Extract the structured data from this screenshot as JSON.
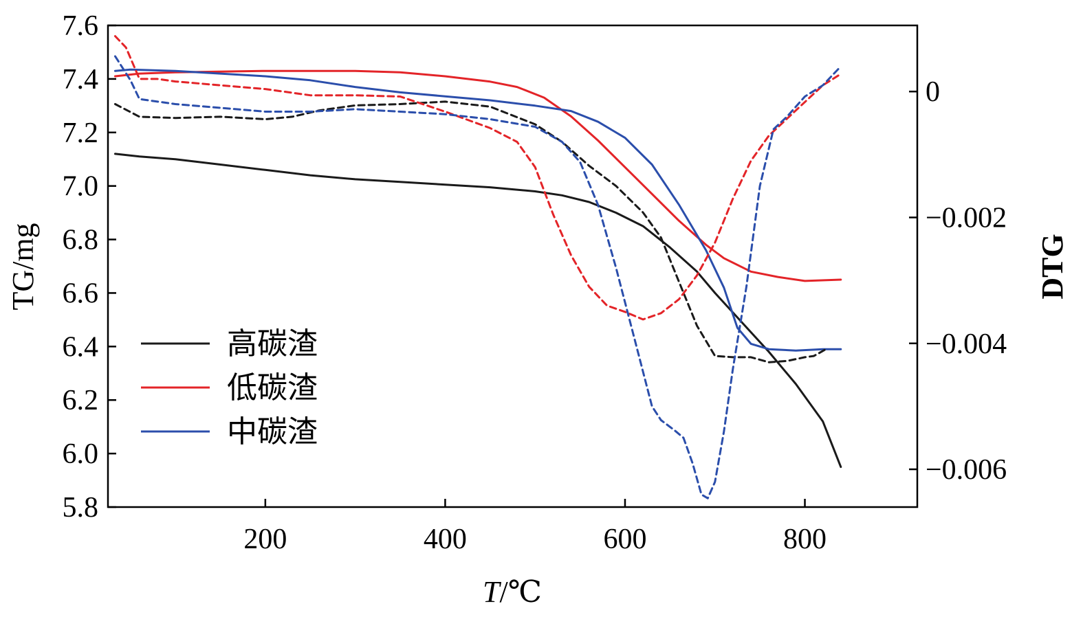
{
  "chart_data": {
    "type": "line",
    "xlabel_italic": "T",
    "xlabel_rest": "/℃",
    "ylabel": "TG/mg",
    "y2label": "DTG",
    "xlim": [
      25,
      925
    ],
    "ylim": [
      5.8,
      7.6
    ],
    "y2lim": [
      -0.0066,
      0.00105
    ],
    "xticks": [
      200,
      400,
      600,
      800
    ],
    "yticks": [
      5.8,
      6.0,
      6.2,
      6.4,
      6.6,
      6.8,
      7.0,
      7.2,
      7.4,
      7.6
    ],
    "yticklabels": [
      "5.8",
      "6.0",
      "6.2",
      "6.4",
      "6.6",
      "6.8",
      "7.0",
      "7.2",
      "7.4",
      "7.6"
    ],
    "y2ticks": [
      0,
      -0.002,
      -0.004,
      -0.006
    ],
    "y2ticklabels": [
      "0",
      "−0.002",
      "−0.004",
      "−0.006"
    ],
    "xticklabels": [
      "200",
      "400",
      "600",
      "800"
    ],
    "grid": false,
    "legend_position": "lower-left",
    "series": [
      {
        "name": "高碳渣",
        "color": "#1a1a1a",
        "axis": "TG",
        "style": "solid",
        "points": [
          [
            33,
            7.12
          ],
          [
            60,
            7.11
          ],
          [
            100,
            7.1
          ],
          [
            150,
            7.08
          ],
          [
            200,
            7.06
          ],
          [
            250,
            7.04
          ],
          [
            300,
            7.025
          ],
          [
            350,
            7.015
          ],
          [
            400,
            7.005
          ],
          [
            450,
            6.995
          ],
          [
            500,
            6.98
          ],
          [
            530,
            6.965
          ],
          [
            560,
            6.94
          ],
          [
            590,
            6.9
          ],
          [
            620,
            6.85
          ],
          [
            650,
            6.77
          ],
          [
            680,
            6.68
          ],
          [
            700,
            6.6
          ],
          [
            730,
            6.49
          ],
          [
            760,
            6.38
          ],
          [
            790,
            6.26
          ],
          [
            820,
            6.12
          ],
          [
            840,
            5.95
          ]
        ]
      },
      {
        "name": "低碳渣",
        "color": "#e32428",
        "axis": "TG",
        "style": "solid",
        "points": [
          [
            33,
            7.41
          ],
          [
            60,
            7.42
          ],
          [
            100,
            7.425
          ],
          [
            200,
            7.43
          ],
          [
            300,
            7.43
          ],
          [
            350,
            7.425
          ],
          [
            400,
            7.41
          ],
          [
            450,
            7.39
          ],
          [
            480,
            7.37
          ],
          [
            510,
            7.33
          ],
          [
            540,
            7.26
          ],
          [
            570,
            7.17
          ],
          [
            600,
            7.07
          ],
          [
            630,
            6.97
          ],
          [
            660,
            6.87
          ],
          [
            690,
            6.78
          ],
          [
            710,
            6.73
          ],
          [
            740,
            6.68
          ],
          [
            770,
            6.66
          ],
          [
            800,
            6.645
          ],
          [
            840,
            6.65
          ]
        ]
      },
      {
        "name": "中碳渣",
        "color": "#2b4eab",
        "axis": "TG",
        "style": "solid",
        "points": [
          [
            33,
            7.43
          ],
          [
            50,
            7.435
          ],
          [
            100,
            7.43
          ],
          [
            150,
            7.42
          ],
          [
            200,
            7.41
          ],
          [
            250,
            7.395
          ],
          [
            300,
            7.37
          ],
          [
            350,
            7.35
          ],
          [
            400,
            7.335
          ],
          [
            450,
            7.32
          ],
          [
            500,
            7.3
          ],
          [
            540,
            7.28
          ],
          [
            570,
            7.24
          ],
          [
            600,
            7.18
          ],
          [
            630,
            7.08
          ],
          [
            660,
            6.93
          ],
          [
            690,
            6.76
          ],
          [
            710,
            6.62
          ],
          [
            725,
            6.47
          ],
          [
            740,
            6.41
          ],
          [
            760,
            6.39
          ],
          [
            790,
            6.385
          ],
          [
            820,
            6.39
          ],
          [
            840,
            6.39
          ]
        ]
      },
      {
        "name": "",
        "color": "#1a1a1a",
        "axis": "DTG",
        "style": "dashed",
        "points": [
          [
            33,
            -0.0002
          ],
          [
            60,
            -0.0004
          ],
          [
            100,
            -0.00042
          ],
          [
            150,
            -0.0004
          ],
          [
            200,
            -0.00044
          ],
          [
            230,
            -0.0004
          ],
          [
            260,
            -0.0003
          ],
          [
            300,
            -0.00022
          ],
          [
            350,
            -0.0002
          ],
          [
            400,
            -0.00016
          ],
          [
            450,
            -0.00024
          ],
          [
            500,
            -0.00052
          ],
          [
            530,
            -0.0008
          ],
          [
            560,
            -0.00118
          ],
          [
            590,
            -0.0015
          ],
          [
            620,
            -0.00192
          ],
          [
            640,
            -0.00232
          ],
          [
            660,
            -0.00302
          ],
          [
            680,
            -0.00372
          ],
          [
            700,
            -0.0042
          ],
          [
            720,
            -0.00422
          ],
          [
            740,
            -0.00422
          ],
          [
            760,
            -0.0043
          ],
          [
            780,
            -0.00428
          ],
          [
            800,
            -0.00422
          ],
          [
            810,
            -0.0042
          ],
          [
            825,
            -0.00408
          ]
        ]
      },
      {
        "name": "",
        "color": "#e32428",
        "axis": "DTG",
        "style": "dashed",
        "points": [
          [
            33,
            0.00088
          ],
          [
            45,
            0.0007
          ],
          [
            60,
            0.0002
          ],
          [
            80,
            0.0002
          ],
          [
            100,
            0.00016
          ],
          [
            150,
            0.0001
          ],
          [
            200,
            4e-05
          ],
          [
            250,
            -6e-05
          ],
          [
            300,
            -6e-05
          ],
          [
            350,
            -8e-05
          ],
          [
            400,
            -0.00032
          ],
          [
            450,
            -0.00058
          ],
          [
            480,
            -0.0008
          ],
          [
            500,
            -0.0012
          ],
          [
            520,
            -0.00195
          ],
          [
            540,
            -0.0026
          ],
          [
            560,
            -0.0031
          ],
          [
            580,
            -0.0034
          ],
          [
            600,
            -0.0035
          ],
          [
            620,
            -0.00362
          ],
          [
            640,
            -0.00352
          ],
          [
            660,
            -0.0033
          ],
          [
            680,
            -0.00292
          ],
          [
            700,
            -0.0024
          ],
          [
            720,
            -0.0017
          ],
          [
            740,
            -0.0011
          ],
          [
            760,
            -0.0007
          ],
          [
            790,
            -0.0003
          ],
          [
            820,
            0.0001
          ],
          [
            840,
            0.00028
          ]
        ]
      },
      {
        "name": "",
        "color": "#2b4eab",
        "axis": "DTG",
        "style": "dashed",
        "points": [
          [
            33,
            0.00056
          ],
          [
            50,
            0.00018
          ],
          [
            60,
            -0.00012
          ],
          [
            100,
            -0.0002
          ],
          [
            150,
            -0.00026
          ],
          [
            200,
            -0.00032
          ],
          [
            250,
            -0.00032
          ],
          [
            300,
            -0.00028
          ],
          [
            350,
            -0.00032
          ],
          [
            400,
            -0.00036
          ],
          [
            450,
            -0.00044
          ],
          [
            500,
            -0.00056
          ],
          [
            530,
            -0.0008
          ],
          [
            550,
            -0.00112
          ],
          [
            570,
            -0.0018
          ],
          [
            590,
            -0.0028
          ],
          [
            610,
            -0.0039
          ],
          [
            630,
            -0.005
          ],
          [
            640,
            -0.00522
          ],
          [
            655,
            -0.00538
          ],
          [
            665,
            -0.0055
          ],
          [
            675,
            -0.0059
          ],
          [
            685,
            -0.0064
          ],
          [
            692,
            -0.00646
          ],
          [
            700,
            -0.0062
          ],
          [
            710,
            -0.0054
          ],
          [
            720,
            -0.0044
          ],
          [
            735,
            -0.0031
          ],
          [
            750,
            -0.0015
          ],
          [
            765,
            -0.0006
          ],
          [
            780,
            -0.0004
          ],
          [
            800,
            -8e-05
          ],
          [
            820,
            0.0001
          ],
          [
            840,
            0.0004
          ]
        ]
      }
    ],
    "legend": [
      {
        "label": "高碳渣",
        "color": "#1a1a1a"
      },
      {
        "label": "低碳渣",
        "color": "#e32428"
      },
      {
        "label": "中碳渣",
        "color": "#2b4eab"
      }
    ]
  }
}
